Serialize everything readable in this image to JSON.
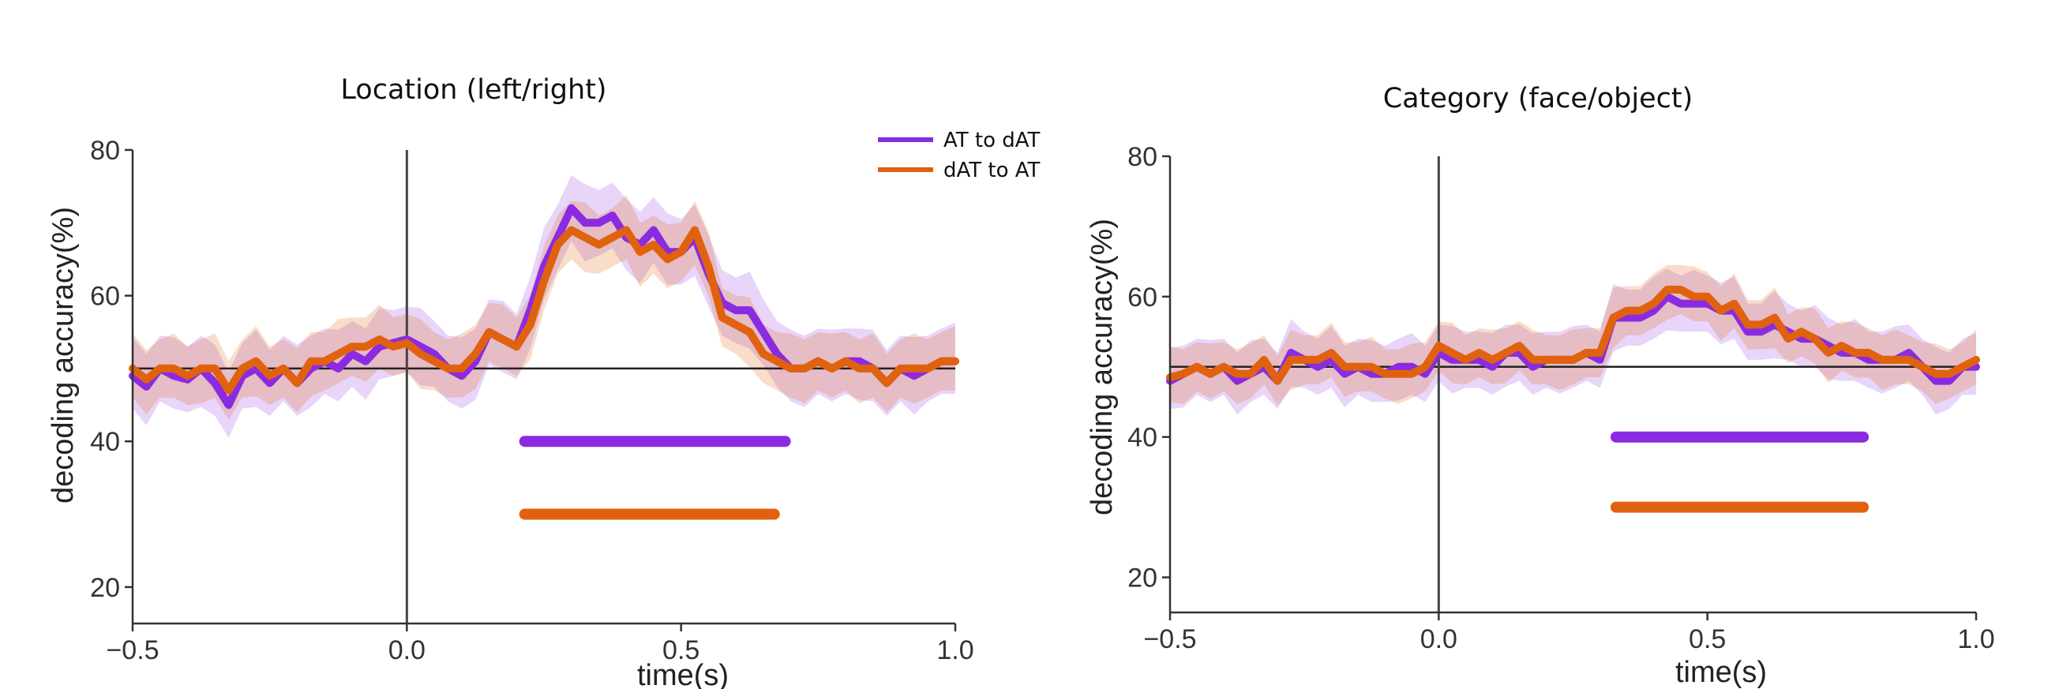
{
  "chart_data": [
    {
      "type": "line",
      "title": "Location (left/right)",
      "xlabel": "time(s)",
      "ylabel": "decoding accuracy(%)",
      "xlim": [
        -0.5,
        1.0
      ],
      "ylim": [
        15,
        80
      ],
      "xticks": [
        "−0.5",
        "0.0",
        "0.5",
        "1.0"
      ],
      "xtick_values": [
        -0.5,
        0.0,
        0.5,
        1.0
      ],
      "yticks": [
        "20",
        "40",
        "60",
        "80"
      ],
      "ytick_values": [
        20,
        40,
        60,
        80
      ],
      "chance_level": 50,
      "onset_line_x": 0.0,
      "legend": {
        "placement": "top-right",
        "entries": [
          "AT to dAT",
          "dAT to AT"
        ]
      },
      "x": [
        -0.5,
        -0.475,
        -0.45,
        -0.425,
        -0.4,
        -0.375,
        -0.35,
        -0.325,
        -0.3,
        -0.275,
        -0.25,
        -0.225,
        -0.2,
        -0.175,
        -0.15,
        -0.125,
        -0.1,
        -0.075,
        -0.05,
        -0.025,
        0.0,
        0.025,
        0.05,
        0.075,
        0.1,
        0.125,
        0.15,
        0.175,
        0.2,
        0.225,
        0.25,
        0.275,
        0.3,
        0.325,
        0.35,
        0.375,
        0.4,
        0.425,
        0.45,
        0.475,
        0.5,
        0.525,
        0.55,
        0.575,
        0.6,
        0.625,
        0.65,
        0.675,
        0.7,
        0.725,
        0.75,
        0.775,
        0.8,
        0.825,
        0.85,
        0.875,
        0.9,
        0.925,
        0.95,
        0.975,
        1.0
      ],
      "series": [
        {
          "name": "AT to dAT",
          "color": "#8a2be2",
          "values": [
            49,
            47.5,
            50,
            49,
            48.5,
            50,
            48,
            45,
            49,
            50,
            48,
            50,
            48,
            50,
            51,
            50,
            52,
            51,
            53,
            53.5,
            54,
            53,
            52,
            50,
            49,
            51,
            55,
            54,
            53,
            58,
            64,
            68,
            72,
            70,
            70,
            71,
            68,
            67,
            69,
            66,
            66,
            68,
            63,
            59,
            58,
            58,
            55,
            52,
            50,
            50,
            51,
            50,
            51,
            51,
            50,
            48,
            50,
            49,
            50,
            51,
            51
          ],
          "ci_halfwidth": 4.5
        },
        {
          "name": "dAT to AT",
          "color": "#e0620f",
          "values": [
            50,
            48.5,
            50,
            50,
            49,
            50,
            50,
            47,
            50,
            51,
            49,
            50,
            48,
            51,
            51,
            52,
            53,
            53,
            54,
            53,
            53.5,
            52,
            51,
            50,
            50,
            52,
            55,
            54,
            53,
            56,
            62,
            67,
            69,
            68,
            67,
            68,
            69,
            66,
            67,
            65,
            66,
            69,
            64,
            57,
            56,
            55,
            52,
            51,
            50,
            50,
            51,
            50,
            51,
            50,
            50,
            48,
            50,
            50,
            50,
            51,
            51
          ],
          "ci_halfwidth": 4.0
        }
      ],
      "significance": [
        {
          "series": "AT to dAT",
          "y": 40,
          "x_start": 0.215,
          "x_end": 0.69
        },
        {
          "series": "dAT to AT",
          "y": 30,
          "x_start": 0.215,
          "x_end": 0.67
        }
      ]
    },
    {
      "type": "line",
      "title": "Category (face/object)",
      "xlabel": "time(s)",
      "ylabel": "decoding accuracy(%)",
      "xlim": [
        -0.5,
        1.0
      ],
      "ylim": [
        15,
        80
      ],
      "xticks": [
        "−0.5",
        "0.0",
        "0.5",
        "1.0"
      ],
      "xtick_values": [
        -0.5,
        0.0,
        0.5,
        1.0
      ],
      "yticks": [
        "20",
        "40",
        "60",
        "80"
      ],
      "ytick_values": [
        20,
        40,
        60,
        80
      ],
      "chance_level": 50,
      "onset_line_x": 0.0,
      "x": [
        -0.5,
        -0.475,
        -0.45,
        -0.425,
        -0.4,
        -0.375,
        -0.35,
        -0.325,
        -0.3,
        -0.275,
        -0.25,
        -0.225,
        -0.2,
        -0.175,
        -0.15,
        -0.125,
        -0.1,
        -0.075,
        -0.05,
        -0.025,
        0.0,
        0.025,
        0.05,
        0.075,
        0.1,
        0.125,
        0.15,
        0.175,
        0.2,
        0.225,
        0.25,
        0.275,
        0.3,
        0.325,
        0.35,
        0.375,
        0.4,
        0.425,
        0.45,
        0.475,
        0.5,
        0.525,
        0.55,
        0.575,
        0.6,
        0.625,
        0.65,
        0.675,
        0.7,
        0.725,
        0.75,
        0.775,
        0.8,
        0.825,
        0.85,
        0.875,
        0.9,
        0.925,
        0.95,
        0.975,
        1.0
      ],
      "series": [
        {
          "name": "AT to dAT",
          "color": "#8a2be2",
          "values": [
            48,
            49,
            50,
            49,
            50,
            48,
            49,
            50,
            48,
            52,
            51,
            50,
            51,
            49,
            50,
            49,
            49,
            50,
            50,
            49,
            52,
            51,
            51,
            51,
            50,
            52,
            52,
            50,
            51,
            51,
            51,
            52,
            51,
            57,
            57,
            57,
            58,
            60,
            59,
            59,
            59,
            58,
            58,
            55,
            55,
            56,
            55,
            54,
            54,
            53,
            52,
            52,
            51,
            51,
            51,
            52,
            50,
            48,
            48,
            50,
            50
          ],
          "ci_halfwidth": 4.0
        },
        {
          "name": "dAT to AT",
          "color": "#e0620f",
          "values": [
            48.5,
            49,
            50,
            49,
            50,
            49,
            49,
            51,
            48,
            51,
            51,
            51,
            52,
            50,
            50,
            50,
            49,
            49,
            49,
            50,
            53,
            52,
            51,
            52,
            51,
            52,
            53,
            51,
            51,
            51,
            51,
            52,
            52,
            57,
            58,
            58,
            59,
            61,
            61,
            60,
            60,
            58,
            59,
            56,
            56,
            57,
            54,
            55,
            54,
            52,
            53,
            52,
            52,
            51,
            51,
            51,
            50,
            49,
            49,
            50,
            51
          ],
          "ci_halfwidth": 3.5
        }
      ],
      "significance": [
        {
          "series": "AT to dAT",
          "y": 40,
          "x_start": 0.33,
          "x_end": 0.79
        },
        {
          "series": "dAT to AT",
          "y": 30,
          "x_start": 0.33,
          "x_end": 0.79
        }
      ]
    }
  ]
}
